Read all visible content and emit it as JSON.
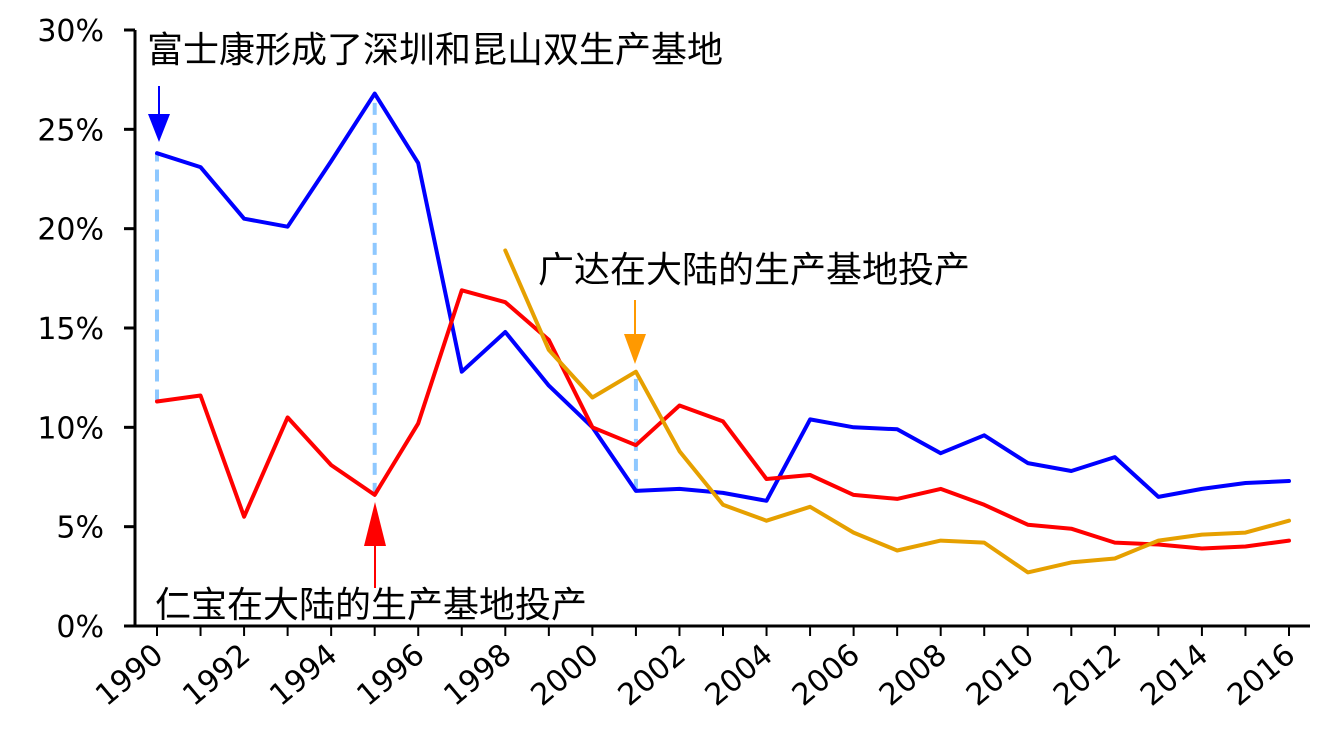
{
  "chart_data": {
    "type": "line",
    "title": "",
    "xlabel": "",
    "ylabel": "",
    "x": [
      1990,
      1991,
      1992,
      1993,
      1994,
      1995,
      1996,
      1997,
      1998,
      1999,
      2000,
      2001,
      2002,
      2003,
      2004,
      2005,
      2006,
      2007,
      2008,
      2009,
      2010,
      2011,
      2012,
      2013,
      2014,
      2015,
      2016
    ],
    "x_tick_labels": [
      "1990",
      "1992",
      "1994",
      "1996",
      "1998",
      "2000",
      "2002",
      "2004",
      "2006",
      "2008",
      "2010",
      "2012",
      "2014",
      "2016"
    ],
    "ylim": [
      0,
      30
    ],
    "y_tick_labels": [
      "0%",
      "5%",
      "10%",
      "15%",
      "20%",
      "25%",
      "30%"
    ],
    "grid": false,
    "legend": "none",
    "series": [
      {
        "color": "#0000ff",
        "values": [
          23.8,
          23.1,
          20.5,
          20.1,
          23.4,
          26.8,
          23.3,
          12.8,
          14.8,
          12.1,
          10.0,
          6.8,
          6.9,
          6.7,
          6.3,
          10.4,
          10.0,
          9.9,
          8.7,
          9.6,
          8.2,
          7.8,
          8.5,
          6.5,
          6.9,
          7.2,
          7.3
        ]
      },
      {
        "color": "#ff0000",
        "values": [
          11.3,
          11.6,
          5.5,
          10.5,
          8.1,
          6.6,
          10.2,
          16.9,
          16.3,
          14.4,
          10.0,
          9.1,
          11.1,
          10.3,
          7.4,
          7.6,
          6.6,
          6.4,
          6.9,
          6.1,
          5.1,
          4.9,
          4.2,
          4.1,
          3.9,
          4.0,
          4.3
        ]
      },
      {
        "color": "#e6a000",
        "values": [
          null,
          null,
          null,
          null,
          null,
          null,
          null,
          null,
          18.9,
          13.9,
          11.5,
          12.8,
          8.8,
          6.1,
          5.3,
          6.0,
          4.7,
          3.8,
          4.3,
          4.2,
          2.7,
          3.2,
          3.4,
          4.3,
          4.6,
          4.7,
          5.3
        ]
      }
    ],
    "annotations": [
      {
        "text": "富士康形成了深圳和昆山双生产基地",
        "arrow_color": "#0000ff",
        "year": 1990,
        "value": 23.8
      },
      {
        "text": "广达在大陆的生产基地投产",
        "arrow_color": "#ff9900",
        "year": 2001,
        "value": 12.8
      },
      {
        "text": "仁宝在大陆的生产基地投产",
        "arrow_color": "#ff0000",
        "year": 1995,
        "value": 6.6
      }
    ],
    "dashed_guides": [
      {
        "year": 1990,
        "from": 11.3,
        "to": 23.8
      },
      {
        "year": 1995,
        "from": 6.6,
        "to": 26.8
      },
      {
        "year": 2001,
        "from": 6.8,
        "to": 12.8
      }
    ],
    "guide_color": "#8ec8ff"
  }
}
